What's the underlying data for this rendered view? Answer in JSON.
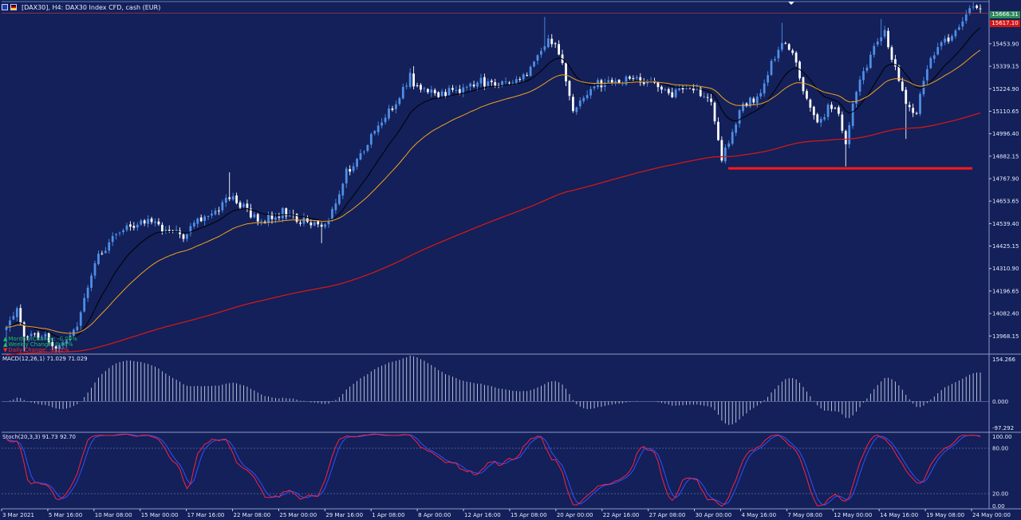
{
  "window": {
    "title": "[DAX30], H4:  DAX30 Index CFD, cash (EUR)",
    "flag_icons": [
      "eu-flag-icon",
      "germany-flag-icon"
    ]
  },
  "colors": {
    "background": "#132059",
    "bull_candle": "#4f8fe8",
    "bear_candle": "#ffffff",
    "ema_fast": "#000000",
    "ema_mid": "#f2a020",
    "ema_slow": "#d01818",
    "support_line": "#ff1a1a",
    "macd": "#c8cde6",
    "stoch_main": "#ff2040",
    "stoch_signal": "#3050ff",
    "bid_badge": "#2e8a5a",
    "ask_badge": "#d01818"
  },
  "stats": [
    {
      "label": "Monthly Change: -0.00%",
      "color": "#1ec060",
      "arrow": "up"
    },
    {
      "label": "Weekly Change: 0.00%",
      "color": "#1ec060",
      "arrow": "up"
    },
    {
      "label": "Daily Change: -0.11%",
      "color": "#ff2a2a",
      "arrow": "down"
    }
  ],
  "price_badges": {
    "bid": "15666.31",
    "ask": "15617.10"
  },
  "macd_label": "MACD(12,26,1) 71.029 71.029",
  "stoch_label": "Stoch(20,3,3) 91.73 92.70",
  "chart_data": [
    {
      "type": "candlestick",
      "symbol": "DAX30",
      "timeframe": "H4",
      "y_ticks": [
        "15453.90",
        "15339.15",
        "15224.90",
        "15110.65",
        "14996.40",
        "14882.15",
        "14767.90",
        "14653.65",
        "14539.40",
        "14425.15",
        "14310.90",
        "14196.65",
        "14082.40",
        "13968.15"
      ],
      "x_ticks": [
        "3 Mar 2021",
        "5 Mar 16:00",
        "10 Mar 08:00",
        "15 Mar 00:00",
        "17 Mar 16:00",
        "22 Mar 08:00",
        "25 Mar 00:00",
        "29 Mar 16:00",
        "1 Apr 08:00",
        "8 Apr 00:00",
        "12 Apr 16:00",
        "15 Apr 08:00",
        "20 Apr 00:00",
        "22 Apr 16:00",
        "27 Apr 08:00",
        "30 Apr 00:00",
        "4 May 16:00",
        "7 May 08:00",
        "12 May 00:00",
        "14 May 16:00",
        "19 May 08:00",
        "24 May 00:00"
      ],
      "ylim": [
        13880,
        15660
      ],
      "close_anchors": [
        [
          0,
          14000
        ],
        [
          3,
          14100
        ],
        [
          5,
          13950
        ],
        [
          10,
          13980
        ],
        [
          14,
          13900
        ],
        [
          18,
          13950
        ],
        [
          20,
          14030
        ],
        [
          22,
          14150
        ],
        [
          26,
          14380
        ],
        [
          30,
          14460
        ],
        [
          35,
          14530
        ],
        [
          40,
          14560
        ],
        [
          45,
          14500
        ],
        [
          50,
          14480
        ],
        [
          55,
          14560
        ],
        [
          60,
          14620
        ],
        [
          64,
          14680
        ],
        [
          67,
          14620
        ],
        [
          72,
          14550
        ],
        [
          78,
          14600
        ],
        [
          82,
          14560
        ],
        [
          86,
          14540
        ],
        [
          90,
          14520
        ],
        [
          96,
          14800
        ],
        [
          100,
          14900
        ],
        [
          106,
          15050
        ],
        [
          110,
          15160
        ],
        [
          114,
          15290
        ],
        [
          116,
          15220
        ],
        [
          120,
          15200
        ],
        [
          125,
          15210
        ],
        [
          130,
          15230
        ],
        [
          134,
          15260
        ],
        [
          138,
          15240
        ],
        [
          142,
          15270
        ],
        [
          147,
          15300
        ],
        [
          151,
          15420
        ],
        [
          153,
          15490
        ],
        [
          156,
          15420
        ],
        [
          158,
          15280
        ],
        [
          160,
          15130
        ],
        [
          163,
          15180
        ],
        [
          166,
          15250
        ],
        [
          170,
          15250
        ],
        [
          175,
          15270
        ],
        [
          180,
          15260
        ],
        [
          185,
          15230
        ],
        [
          188,
          15200
        ],
        [
          191,
          15210
        ],
        [
          195,
          15220
        ],
        [
          199,
          15160
        ],
        [
          202,
          14860
        ],
        [
          205,
          15000
        ],
        [
          208,
          15150
        ],
        [
          212,
          15180
        ],
        [
          216,
          15350
        ],
        [
          219,
          15460
        ],
        [
          222,
          15400
        ],
        [
          225,
          15230
        ],
        [
          228,
          15100
        ],
        [
          230,
          15050
        ],
        [
          232,
          15150
        ],
        [
          235,
          15100
        ],
        [
          237,
          14960
        ],
        [
          239,
          15150
        ],
        [
          242,
          15300
        ],
        [
          245,
          15460
        ],
        [
          248,
          15510
        ],
        [
          251,
          15330
        ],
        [
          254,
          15160
        ],
        [
          257,
          15100
        ],
        [
          260,
          15330
        ],
        [
          262,
          15400
        ],
        [
          265,
          15470
        ],
        [
          268,
          15520
        ],
        [
          270,
          15580
        ],
        [
          272,
          15630
        ],
        [
          274,
          15650
        ]
      ],
      "extreme_points": [
        {
          "index": 0,
          "low": 13920
        },
        {
          "index": 5,
          "low": 13890
        },
        {
          "index": 63,
          "high": 14800
        },
        {
          "index": 89,
          "low": 14440
        },
        {
          "index": 115,
          "high": 15340
        },
        {
          "index": 152,
          "high": 15590
        },
        {
          "index": 202,
          "low": 14850
        },
        {
          "index": 219,
          "high": 15560
        },
        {
          "index": 237,
          "low": 14830
        },
        {
          "index": 247,
          "high": 15580
        },
        {
          "index": 254,
          "low": 14970
        },
        {
          "index": 273,
          "high": 15665
        }
      ],
      "series": [
        {
          "name": "EMA fast",
          "color": "#000000",
          "period": 14
        },
        {
          "name": "EMA mid",
          "color": "#f2a020",
          "period": 34
        },
        {
          "name": "EMA slow",
          "color": "#d01818",
          "period": 200
        }
      ],
      "horizontal_lines": [
        {
          "name": "support",
          "y": 14820,
          "color": "#ff1a1a"
        },
        {
          "name": "current-price",
          "y": 15668,
          "color": "#7fa0d0"
        },
        {
          "name": "high-marker",
          "y": 15610,
          "color": "#c04040"
        }
      ]
    },
    {
      "type": "histogram",
      "name": "MACD(12,26,1)",
      "y_ticks": [
        "154.266",
        "0.000",
        "-97.292"
      ],
      "ylim": [
        -97.292,
        154.266
      ]
    },
    {
      "type": "line",
      "name": "Stoch(20,3,3)",
      "y_ticks": [
        "100.00",
        "80.00",
        "20.00",
        "0.00"
      ],
      "ylim": [
        0,
        100
      ],
      "levels": [
        80,
        20
      ]
    }
  ]
}
